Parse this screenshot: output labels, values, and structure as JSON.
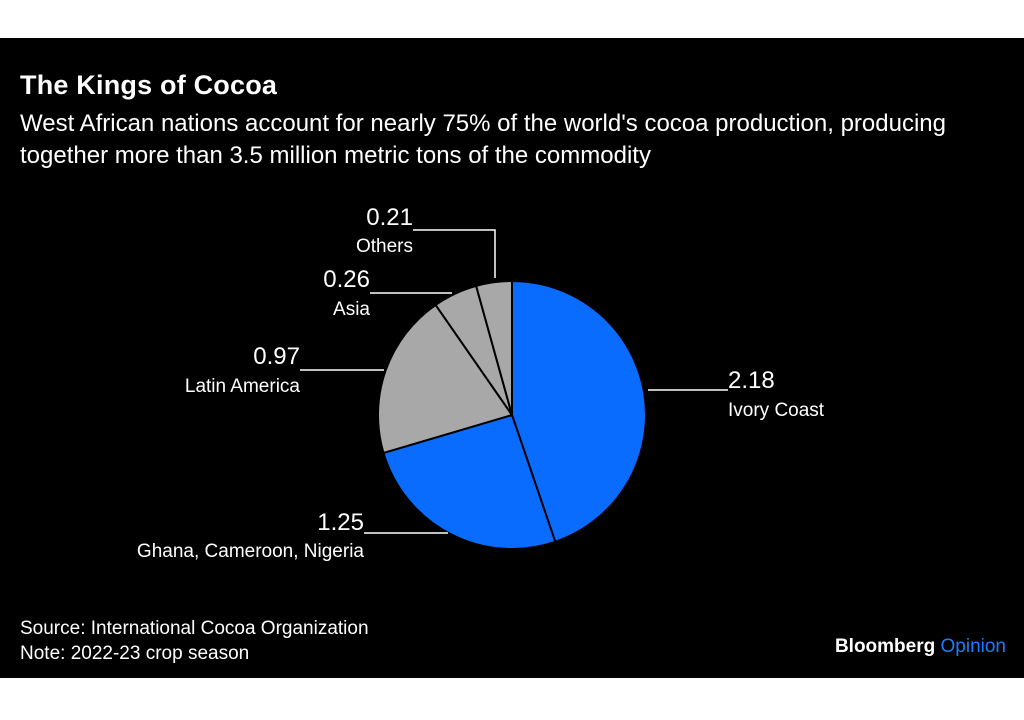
{
  "header": {
    "title": "The Kings of Cocoa",
    "subtitle": "West African nations account for nearly 75% of the world's cocoa production, producing together more than 3.5 million metric tons of the commodity"
  },
  "footer": {
    "source": "Source: International Cocoa Organization",
    "note": "Note: 2022-23 crop season",
    "brand_primary": "Bloomberg",
    "brand_secondary": "Opinion",
    "brand_accent_color": "#1a7cff"
  },
  "chart_data": {
    "type": "pie",
    "title": "The Kings of Cocoa",
    "slices": [
      {
        "label": "Ivory Coast",
        "value": 2.18,
        "value_label": "2.18",
        "color": "#0a6cff"
      },
      {
        "label": "Ghana, Cameroon, Nigeria",
        "value": 1.25,
        "value_label": "1.25",
        "color": "#0a6cff"
      },
      {
        "label": "Latin America",
        "value": 0.97,
        "value_label": "0.97",
        "color": "#a8a8a8"
      },
      {
        "label": "Asia",
        "value": 0.26,
        "value_label": "0.26",
        "color": "#a8a8a8"
      },
      {
        "label": "Others",
        "value": 0.21,
        "value_label": "0.21",
        "color": "#a8a8a8"
      }
    ],
    "start": "12 o'clock",
    "direction": "clockwise",
    "legend": "none"
  }
}
